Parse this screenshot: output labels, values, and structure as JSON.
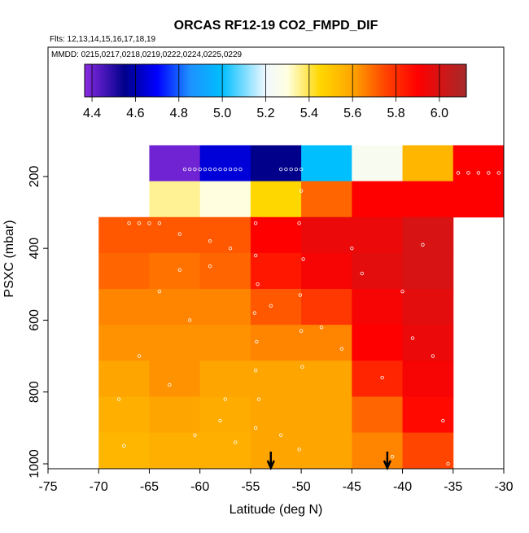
{
  "chart_data": {
    "type": "heatmap",
    "title": "ORCAS RF12-19 CO2_FMPD_DIF",
    "subtitle": "Flts: 12,13,14,15,16,17,18,19",
    "annotation": "MMDD: 0215,0217,0218,0219,0222,0224,0225,0229",
    "xlabel": "Latitude (deg N)",
    "ylabel": "PSXC (mbar)",
    "xlim": [
      -75,
      -30
    ],
    "xticks": [
      -75,
      -70,
      -65,
      -60,
      -55,
      -50,
      -45,
      -40,
      -35,
      -30
    ],
    "ylim": [
      1013.6,
      -160
    ],
    "yticks": [
      200,
      400,
      600,
      800,
      1000
    ],
    "x_bins": [
      -70,
      -65,
      -60,
      -55,
      -50,
      -45,
      -40,
      -35,
      -30
    ],
    "y_bins": [
      113,
      213,
      313,
      413,
      513,
      613,
      713,
      813,
      913,
      1013
    ],
    "values": [
      [
        null,
        4.4,
        4.65,
        4.55,
        5.0,
        5.25,
        5.55,
        5.9
      ],
      [
        null,
        5.35,
        5.3,
        5.45,
        5.7,
        5.9,
        5.9,
        5.9
      ],
      [
        5.72,
        5.72,
        5.72,
        5.9,
        5.95,
        5.95,
        6.0,
        null
      ],
      [
        5.7,
        5.68,
        5.7,
        5.85,
        5.92,
        5.97,
        6.0,
        null
      ],
      [
        5.65,
        5.65,
        5.65,
        5.72,
        5.78,
        5.92,
        5.97,
        null
      ],
      [
        5.63,
        5.63,
        5.63,
        5.65,
        5.65,
        5.9,
        5.95,
        null
      ],
      [
        5.6,
        5.63,
        5.6,
        5.6,
        5.6,
        5.82,
        5.92,
        null
      ],
      [
        5.57,
        5.6,
        5.58,
        5.6,
        5.6,
        5.7,
        5.88,
        null
      ],
      [
        5.55,
        5.57,
        5.57,
        5.6,
        5.6,
        5.65,
        5.75,
        null
      ]
    ],
    "colormap": {
      "values": [
        4.366,
        4.55,
        4.7,
        4.85,
        5.0,
        5.2,
        5.3,
        5.45,
        5.6,
        5.75,
        5.9,
        6.124
      ],
      "colors": [
        "#8a2be2",
        "#00008b",
        "#0000ff",
        "#1e90ff",
        "#00bfff",
        "#f0f8ff",
        "#ffffe0",
        "#ffd700",
        "#ffa500",
        "#ff4500",
        "#ff0000",
        "#a52a2a"
      ]
    },
    "colorbar_lim": [
      4.366,
      6.124
    ],
    "colorbar_ticks": [
      4.4,
      4.6,
      4.8,
      {
        "value": 5.0,
        "label": "5.0"
      },
      5.2,
      5.4,
      5.6,
      5.8,
      {
        "value": 6.0,
        "label": "6.0"
      }
    ],
    "points": {
      "color": "#ffffff",
      "x": [
        -61.5,
        -61,
        -60.5,
        -60,
        -59.5,
        -59,
        -58.5,
        -58,
        -57.5,
        -57,
        -56.5,
        -56,
        -52,
        -51.5,
        -51,
        -50.5,
        -50,
        -34.5,
        -33.5,
        -32.5,
        -31.5,
        -30.5,
        -67,
        -66,
        -65,
        -64,
        -62,
        -59,
        -57,
        -54.5,
        -54.5,
        -54.3,
        -54.6,
        -54.4,
        -54.5,
        -54.2,
        -54.5,
        -50,
        -50.2,
        -49.8,
        -50.1,
        -50,
        -49.9,
        -50.2,
        -68,
        -67.5,
        -66,
        -64,
        -62,
        -61,
        -59,
        -58,
        -56.5,
        -53,
        -52,
        -48,
        -46,
        -44,
        -42,
        -40,
        -38,
        -37,
        -36,
        -63,
        -60.5,
        -57.5,
        -45,
        -41,
        -39,
        -35.5
      ],
      "y": [
        180,
        180,
        180,
        180,
        180,
        180,
        180,
        180,
        180,
        180,
        180,
        180,
        180,
        180,
        180,
        180,
        180,
        190,
        190,
        190,
        190,
        190,
        330,
        330,
        330,
        330,
        360,
        380,
        400,
        330,
        420,
        500,
        580,
        660,
        740,
        820,
        900,
        240,
        330,
        430,
        530,
        630,
        730,
        960,
        820,
        950,
        700,
        520,
        460,
        600,
        450,
        880,
        940,
        560,
        920,
        620,
        680,
        470,
        760,
        520,
        390,
        700,
        880,
        780,
        920,
        820,
        400,
        980,
        650,
        1000
      ]
    },
    "arrows_x": [
      -53,
      -41.5
    ]
  }
}
